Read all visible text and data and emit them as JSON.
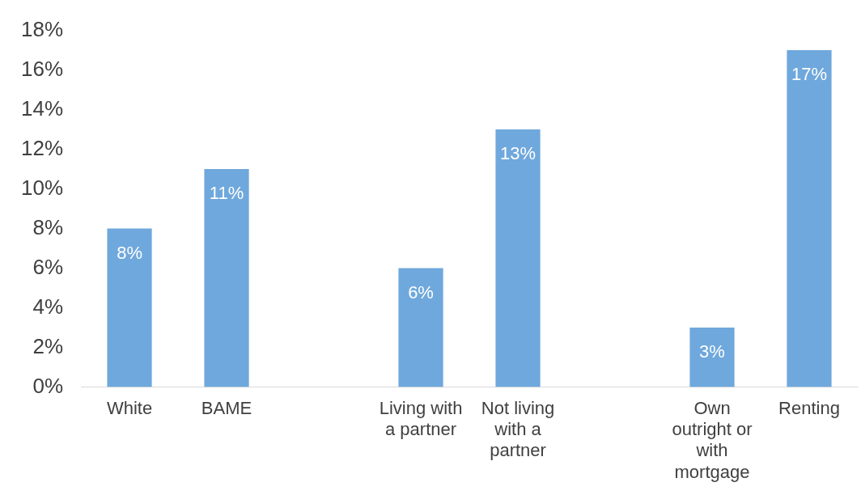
{
  "chart_data": {
    "type": "bar",
    "categories": [
      "White",
      "BAME",
      null,
      "Living with a partner",
      "Not living with a partner",
      null,
      "Own outright or with mortgage",
      "Renting"
    ],
    "values": [
      8,
      11,
      null,
      6,
      13,
      null,
      3,
      17
    ],
    "value_labels": [
      "8%",
      "11%",
      null,
      "6%",
      "13%",
      null,
      "3%",
      "17%"
    ],
    "color": "#6fa8dc",
    "ylim": [
      0,
      18
    ],
    "yticks": [
      {
        "value": 0,
        "label": "0%"
      },
      {
        "value": 2,
        "label": "2%"
      },
      {
        "value": 4,
        "label": "4%"
      },
      {
        "value": 6,
        "label": "6%"
      },
      {
        "value": 8,
        "label": "8%"
      },
      {
        "value": 10,
        "label": "10%"
      },
      {
        "value": 12,
        "label": "12%"
      },
      {
        "value": 14,
        "label": "14%"
      },
      {
        "value": 16,
        "label": "16%"
      },
      {
        "value": 18,
        "label": "18%"
      }
    ],
    "grid": false,
    "legend": false
  }
}
